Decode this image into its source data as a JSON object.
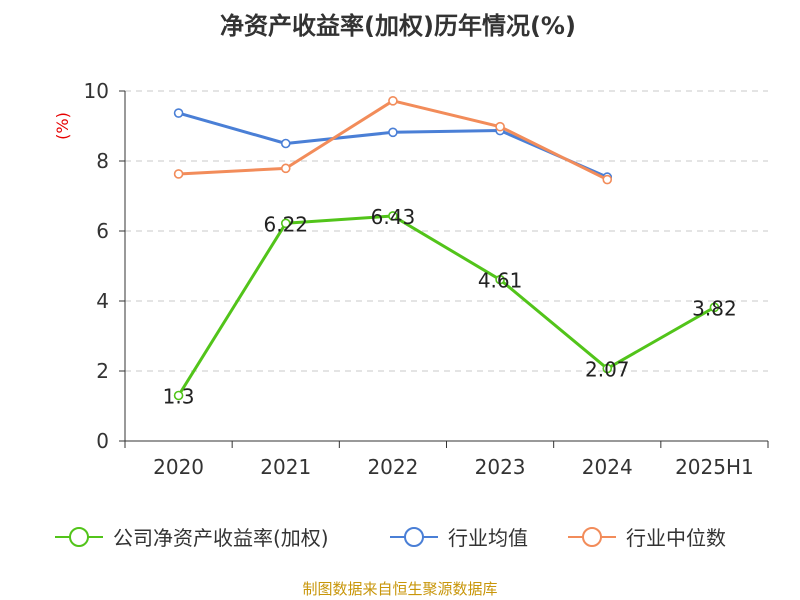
{
  "chart_data": {
    "type": "line",
    "title": "净资产收益率(加权)历年情况(%)",
    "unit_label": "(%)",
    "categories": [
      "2020",
      "2021",
      "2022",
      "2023",
      "2024",
      "2025H1"
    ],
    "ylim": [
      0,
      10
    ],
    "yticks": [
      0,
      2,
      4,
      6,
      8,
      10
    ],
    "grid": true,
    "legend_position": "bottom",
    "series": [
      {
        "name": "公司净资产收益率(加权)",
        "color": "#52c41a",
        "values": [
          1.3,
          6.22,
          6.43,
          4.61,
          2.07,
          3.82
        ],
        "labels": [
          "1.3",
          "6.22",
          "6.43",
          "4.61",
          "2.07",
          "3.82"
        ]
      },
      {
        "name": "行业均值",
        "color": "#4a7fd6",
        "values": [
          9.37,
          8.5,
          8.82,
          8.87,
          7.54,
          null
        ]
      },
      {
        "name": "行业中位数",
        "color": "#f28c5a",
        "values": [
          7.63,
          7.79,
          9.72,
          8.98,
          7.47,
          null
        ]
      }
    ]
  },
  "source": "制图数据来自恒生聚源数据库"
}
